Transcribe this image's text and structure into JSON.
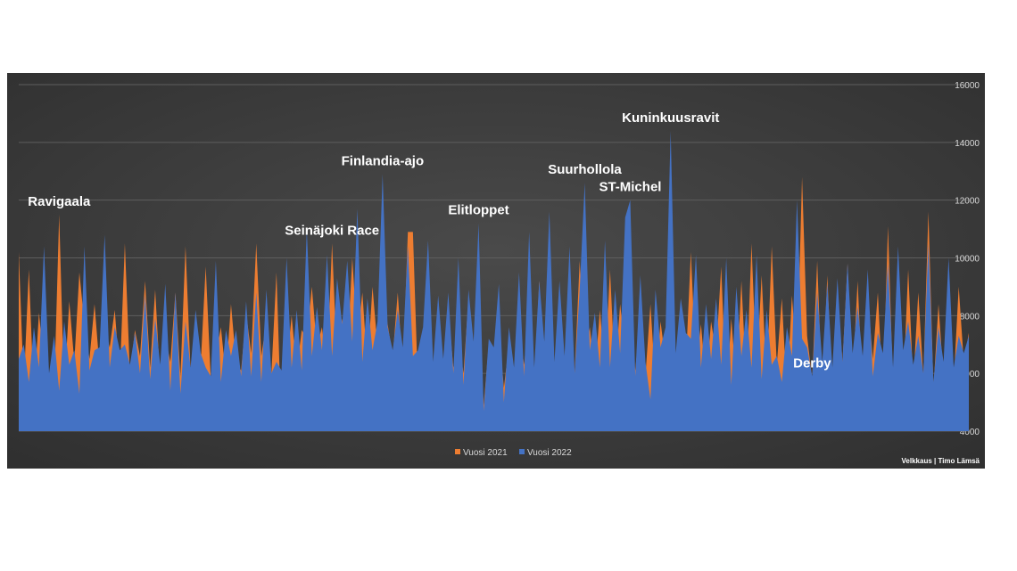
{
  "chart_data": {
    "type": "area",
    "title": "",
    "xlabel": "",
    "ylabel": "",
    "ylim": [
      4000,
      16000
    ],
    "y_ticks": [
      "4000",
      "6000",
      "8000",
      "10000",
      "12000",
      "14000",
      "16000"
    ],
    "y_axis_side": "right",
    "grid": true,
    "legend_position": "bottom",
    "background": "#2f2f2f",
    "series": [
      {
        "name": "Vuosi 2021",
        "color": "#ed7d31",
        "values": [
          10200,
          5600,
          9600,
          5200,
          8100,
          6300,
          5800,
          5300,
          11500,
          5400,
          8500,
          6400,
          9500,
          7700,
          6500,
          8400,
          6200,
          7600,
          6900,
          8200,
          5900,
          10500,
          6000,
          7500,
          6600,
          9200,
          6200,
          8900,
          5700,
          7300,
          6400,
          8800,
          5900,
          10400,
          6100,
          8000,
          6300,
          9700,
          5800,
          6600,
          7600,
          5900,
          8400,
          6400,
          6100,
          8100,
          6700,
          10500,
          6600,
          7800,
          6000,
          9500,
          4000,
          6200,
          8000,
          6100,
          7500,
          7200,
          9000,
          6900,
          7600,
          6200,
          10500,
          6300,
          7900,
          6600,
          10000,
          7200,
          8800,
          6200,
          9000,
          6900,
          8700,
          7700,
          6600,
          8800,
          6100,
          10900,
          10900,
          5500,
          6300,
          8100,
          5800,
          7000,
          6400,
          8200,
          6200,
          7300,
          6000,
          8600,
          6700,
          8500,
          4900,
          7000,
          6500,
          7500,
          5500,
          7000,
          6000,
          7600,
          6300,
          8100,
          5700,
          9200,
          6200,
          7300,
          6100,
          8100,
          5800,
          8400,
          6000,
          9900,
          6300,
          7600,
          5900,
          8200,
          6100,
          9600,
          5900,
          8400,
          6800,
          7500,
          6100,
          8000,
          5900,
          8400,
          5600,
          7800,
          6400,
          8300,
          6100,
          7200,
          6300,
          10200,
          6200,
          7700,
          5700,
          7800,
          6700,
          9700,
          5200,
          7900,
          5600,
          9200,
          5600,
          10500,
          6000,
          9400,
          5700,
          10400,
          6300,
          8600,
          5300,
          8700,
          6300,
          12800,
          7300,
          5800,
          9900,
          5200,
          9400,
          5400,
          8800,
          6400,
          9800,
          5800,
          9200,
          5300,
          8700,
          6500,
          8800,
          5200,
          11100,
          5600,
          8700,
          5400,
          9600,
          5700,
          8800,
          5900,
          11600,
          5500,
          8400,
          5800,
          9500,
          5700,
          9000,
          6400,
          7400
        ]
      },
      {
        "name": "Vuosi 2022",
        "color": "#4472c4",
        "values": [
          6500,
          7000,
          5700,
          7600,
          6200,
          10400,
          6000,
          7300,
          5400,
          7800,
          6300,
          6800,
          5300,
          10400,
          6100,
          6800,
          6900,
          10800,
          6200,
          7600,
          6800,
          7000,
          6300,
          7400,
          6000,
          8700,
          5800,
          7900,
          6300,
          9100,
          5400,
          8800,
          5300,
          7800,
          6200,
          8200,
          6700,
          6200,
          5900,
          9900,
          5700,
          7500,
          6600,
          7500,
          5900,
          8500,
          5900,
          8800,
          5700,
          8900,
          6000,
          6400,
          6100,
          10000,
          6200,
          8200,
          6100,
          11000,
          6600,
          8300,
          6800,
          10100,
          6600,
          9300,
          7700,
          9900,
          7100,
          11700,
          6400,
          8600,
          6800,
          7800,
          12900,
          7600,
          6800,
          8200,
          6900,
          10400,
          6600,
          6800,
          7600,
          10600,
          6400,
          8700,
          6500,
          8800,
          6000,
          10000,
          5600,
          8900,
          7100,
          11200,
          4700,
          7200,
          6900,
          9100,
          5000,
          7600,
          6200,
          9500,
          5900,
          10900,
          6200,
          9200,
          7100,
          11600,
          6400,
          9200,
          6600,
          10400,
          6000,
          8900,
          12600,
          6800,
          8100,
          6200,
          10600,
          6200,
          8900,
          6700,
          11400,
          12000,
          5900,
          9400,
          6400,
          5100,
          8900,
          6900,
          7600,
          14400,
          6700,
          8600,
          7400,
          7200,
          10100,
          6200,
          8400,
          6500,
          8600,
          6300,
          10000,
          5600,
          9000,
          6600,
          8200,
          6200,
          10100,
          5800,
          8200,
          6300,
          6600,
          5700,
          7600,
          6600,
          12000,
          7200,
          6900,
          5900,
          8800,
          6400,
          9100,
          6200,
          9300,
          6400,
          9800,
          6700,
          8300,
          6600,
          9600,
          5900,
          7400,
          6700,
          9800,
          6200,
          10400,
          6800,
          7800,
          6300,
          7300,
          6000,
          10500,
          5700,
          7600,
          6400,
          10000,
          6200,
          7300,
          6700,
          7300
        ]
      }
    ],
    "annotations": [
      {
        "label": "Ravigaala",
        "index": 8
      },
      {
        "label": "Seinäjoki Race",
        "index": 62
      },
      {
        "label": "Finlandia-ajo",
        "index": 72
      },
      {
        "label": "Elitloppet",
        "index": 91
      },
      {
        "label": "Suurhollola",
        "index": 112
      },
      {
        "label": "ST-Michel",
        "index": 121
      },
      {
        "label": "Kuninkuusravit",
        "index": 129
      },
      {
        "label": "Derby",
        "index": 157
      }
    ]
  },
  "credit": "Velkkaus | Timo Lämsä"
}
